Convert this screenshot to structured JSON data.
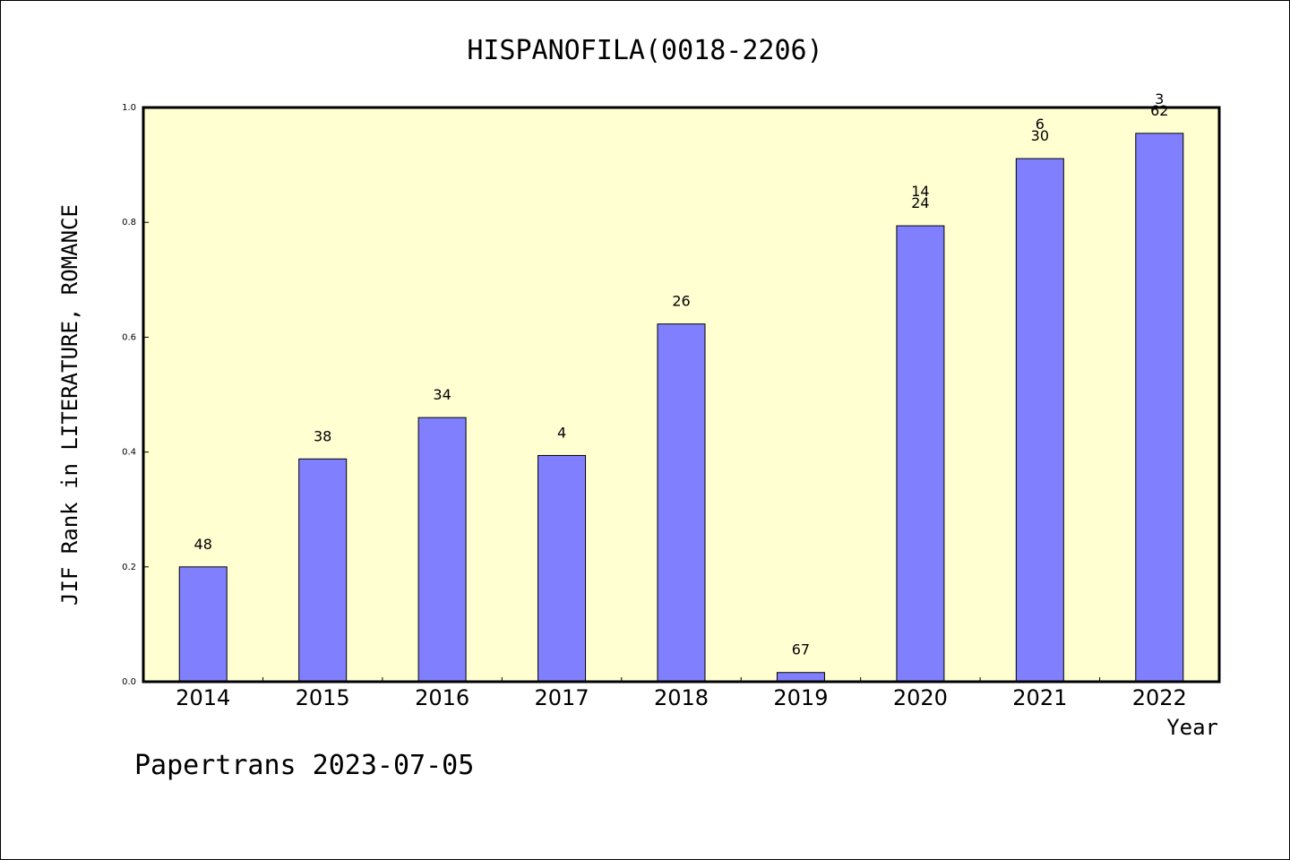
{
  "chart_data": {
    "type": "bar",
    "title": "HISPANOFILA(0018-2206)",
    "xlabel": "Year",
    "ylabel": "JIF Rank in LITERATURE, ROMANCE",
    "ylim": [
      0,
      1.0
    ],
    "yticks": [
      "0.0",
      "0.2",
      "0.4",
      "0.6",
      "0.8",
      "1.0"
    ],
    "categories": [
      "2014",
      "2015",
      "2016",
      "2017",
      "2018",
      "2019",
      "2020",
      "2021",
      "2022"
    ],
    "values": [
      0.2,
      0.388,
      0.46,
      0.394,
      0.623,
      0.016,
      0.794,
      0.911,
      0.955
    ],
    "bar_labels": [
      [
        "48"
      ],
      [
        "38"
      ],
      [
        "34"
      ],
      [
        "4"
      ],
      [
        "26"
      ],
      [
        "67"
      ],
      [
        "14",
        "24"
      ],
      [
        "6",
        "30"
      ],
      [
        "3",
        "62"
      ]
    ],
    "colors": {
      "plot_background": "#ffffd2",
      "bar_fill": "#8080ff",
      "bar_stroke": "#000000"
    }
  },
  "footer": "Papertrans 2023-07-05"
}
